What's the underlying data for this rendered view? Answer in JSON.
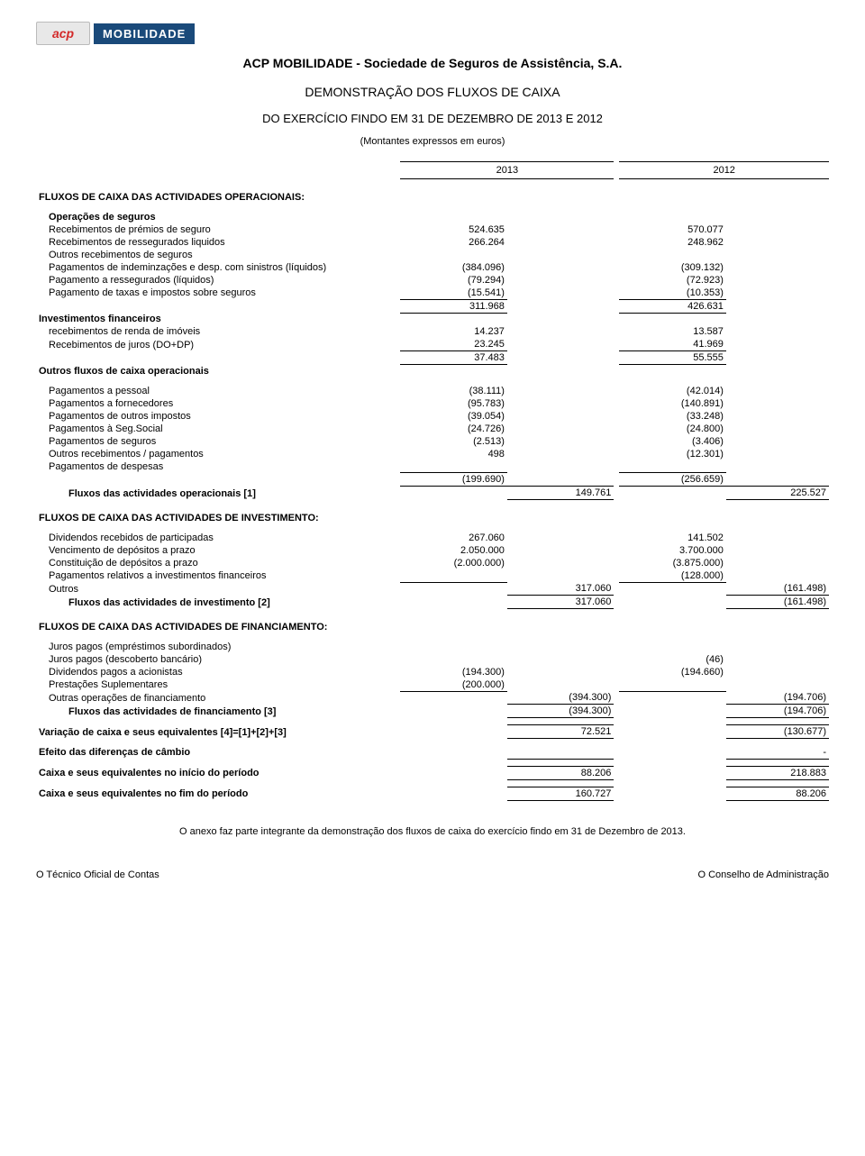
{
  "logo": {
    "acp": "acp",
    "mobilidade": "MOBILIDADE"
  },
  "company_name": "ACP MOBILIDADE - Sociedade de Seguros de Assistência, S.A.",
  "doc_title": "DEMONSTRAÇÃO DOS FLUXOS DE CAIXA",
  "subtitle": "DO EXERCÍCIO FINDO EM 31 DE DEZEMBRO DE 2013 E 2012",
  "units": "(Montantes expressos em euros)",
  "yr": {
    "a": "2013",
    "b": "2012"
  },
  "sec": {
    "op_head": "FLUXOS DE CAIXA DAS ACTIVIDADES OPERACIONAIS:",
    "op_seguros": "Operações de seguros",
    "inv_fin": "Investimentos financeiros",
    "outros_flux": "Outros fluxos de caixa operacionais",
    "flux_op": "Fluxos das actividades operacionais [1]",
    "inv_head": "FLUXOS DE CAIXA DAS ACTIVIDADES DE INVESTIMENTO:",
    "flux_inv": "Fluxos das actividades de investimento [2]",
    "fin_head": "FLUXOS DE CAIXA DAS ACTIVIDADES DE FINANCIAMENTO:",
    "flux_fin": "Fluxos das actividades de financiamento [3]",
    "var": "Variação de caixa e seus equivalentes [4]=[1]+[2]+[3]",
    "efeito": "Efeito das diferenças de câmbio",
    "inicio": "Caixa e seus equivalentes no início do período",
    "fim": "Caixa e seus equivalentes no fim do período"
  },
  "rows": {
    "r1": {
      "l": "Recebimentos de prémios de seguro",
      "a": "524.635",
      "b": "570.077"
    },
    "r2": {
      "l": "Recebimentos de ressegurados liquidos",
      "a": "266.264",
      "b": "248.962"
    },
    "r3": {
      "l": "Outros recebimentos de seguros",
      "a": "",
      "b": ""
    },
    "r4": {
      "l": "Pagamentos de indeminzações e desp. com sinistros (líquidos)",
      "a": "(384.096)",
      "b": "(309.132)"
    },
    "r5": {
      "l": "Pagamento a ressegurados (líquidos)",
      "a": "(79.294)",
      "b": "(72.923)"
    },
    "r6": {
      "l": "Pagamento de taxas e impostos sobre seguros",
      "a": "(15.541)",
      "b": "(10.353)"
    },
    "sub1": {
      "a": "311.968",
      "b": "426.631"
    },
    "r7": {
      "l": "recebimentos de renda de imóveis",
      "a": "14.237",
      "b": "13.587"
    },
    "r8": {
      "l": "Recebimentos de juros (DO+DP)",
      "a": "23.245",
      "b": "41.969"
    },
    "sub2": {
      "a": "37.483",
      "b": "55.555"
    },
    "r9": {
      "l": "Pagamentos a pessoal",
      "a": "(38.111)",
      "b": "(42.014)"
    },
    "r10": {
      "l": "Pagamentos a fornecedores",
      "a": "(95.783)",
      "b": "(140.891)"
    },
    "r11": {
      "l": "Pagamentos de outros impostos",
      "a": "(39.054)",
      "b": "(33.248)"
    },
    "r12": {
      "l": "Pagamentos à Seg.Social",
      "a": "(24.726)",
      "b": "(24.800)"
    },
    "r13": {
      "l": "Pagamentos de seguros",
      "a": "(2.513)",
      "b": "(3.406)"
    },
    "r14": {
      "l": "Outros recebimentos / pagamentos",
      "a": "498",
      "b": "(12.301)"
    },
    "r15": {
      "l": "Pagamentos de despesas",
      "a": "",
      "b": ""
    },
    "sub3": {
      "a": "(199.690)",
      "b": "(256.659)"
    },
    "tot_op": {
      "a": "149.761",
      "b": "225.527"
    },
    "i1": {
      "l": "Dividendos recebidos de participadas",
      "a": "267.060",
      "b": "141.502"
    },
    "i2": {
      "l": "Vencimento de depósitos a prazo",
      "a": "2.050.000",
      "b": "3.700.000"
    },
    "i3": {
      "l": "Constituição de depósitos a prazo",
      "a": "(2.000.000)",
      "b": "(3.875.000)"
    },
    "i4": {
      "l": "Pagamentos relativos a investimentos financeiros",
      "a": "",
      "b": "(128.000)"
    },
    "i5": {
      "l": "Outros",
      "a2": "317.060",
      "b2": "(161.498)"
    },
    "tot_inv": {
      "a": "317.060",
      "b": "(161.498)"
    },
    "f1": {
      "l": "Juros pagos (empréstimos subordinados)",
      "a": "",
      "b": ""
    },
    "f2": {
      "l": "Juros pagos (descoberto bancário)",
      "a": "",
      "b": "(46)"
    },
    "f3": {
      "l": "Dividendos pagos a acionistas",
      "a": "(194.300)",
      "b": "(194.660)"
    },
    "f4": {
      "l": "Prestações Suplementares",
      "a": "(200.000)",
      "b": ""
    },
    "f5": {
      "l": "Outras operações de financiamento",
      "a2": "(394.300)",
      "b2": "(194.706)"
    },
    "tot_fin": {
      "a": "(394.300)",
      "b": "(194.706)"
    },
    "var": {
      "a": "72.521",
      "b": "(130.677)"
    },
    "efeito": {
      "b": "-"
    },
    "inicio": {
      "a": "88.206",
      "b": "218.883"
    },
    "fim": {
      "a": "160.727",
      "b": "88.206"
    }
  },
  "footnote": "O anexo faz parte integrante da demonstração dos fluxos de caixa do exercício findo em 31 de Dezembro de 2013.",
  "sign": {
    "left": "O Técnico Oficial de Contas",
    "right": "O Conselho de Administração"
  }
}
